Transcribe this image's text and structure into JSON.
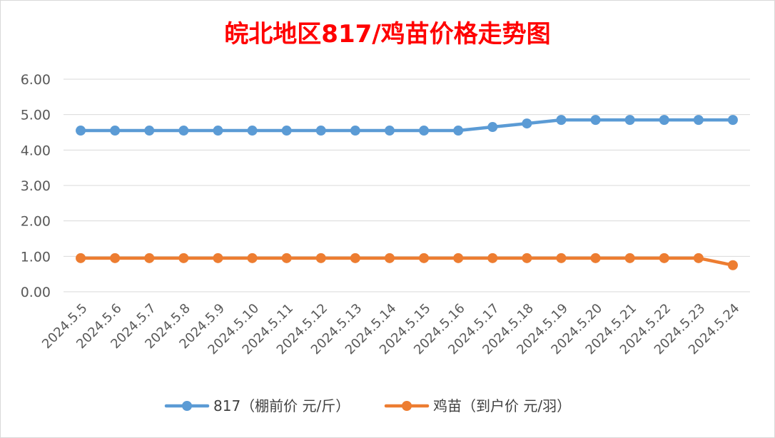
{
  "chart_data": {
    "type": "line",
    "title": "皖北地区817/鸡苗价格走势图",
    "title_color": "#ff0000",
    "categories": [
      "2024.5.5",
      "2024.5.6",
      "2024.5.7",
      "2024.5.8",
      "2024.5.9",
      "2024.5.10",
      "2024.5.11",
      "2024.5.12",
      "2024.5.13",
      "2024.5.14",
      "2024.5.15",
      "2024.5.16",
      "2024.5.17",
      "2024.5.18",
      "2024.5.19",
      "2024.5.20",
      "2024.5.21",
      "2024.5.22",
      "2024.5.23",
      "2024.5.24"
    ],
    "series": [
      {
        "name": "817（棚前价 元/斤）",
        "color": "#5b9bd5",
        "values": [
          4.55,
          4.55,
          4.55,
          4.55,
          4.55,
          4.55,
          4.55,
          4.55,
          4.55,
          4.55,
          4.55,
          4.55,
          4.65,
          4.75,
          4.85,
          4.85,
          4.85,
          4.85,
          4.85,
          4.85
        ]
      },
      {
        "name": "鸡苗（到户价 元/羽）",
        "color": "#ed7d31",
        "values": [
          0.95,
          0.95,
          0.95,
          0.95,
          0.95,
          0.95,
          0.95,
          0.95,
          0.95,
          0.95,
          0.95,
          0.95,
          0.95,
          0.95,
          0.95,
          0.95,
          0.95,
          0.95,
          0.95,
          0.75
        ]
      }
    ],
    "yticks": [
      "0.00",
      "1.00",
      "2.00",
      "3.00",
      "4.00",
      "5.00",
      "6.00"
    ],
    "ylim": [
      0,
      6
    ],
    "grid": true,
    "legend_position": "bottom",
    "xlabel": "",
    "ylabel": ""
  }
}
